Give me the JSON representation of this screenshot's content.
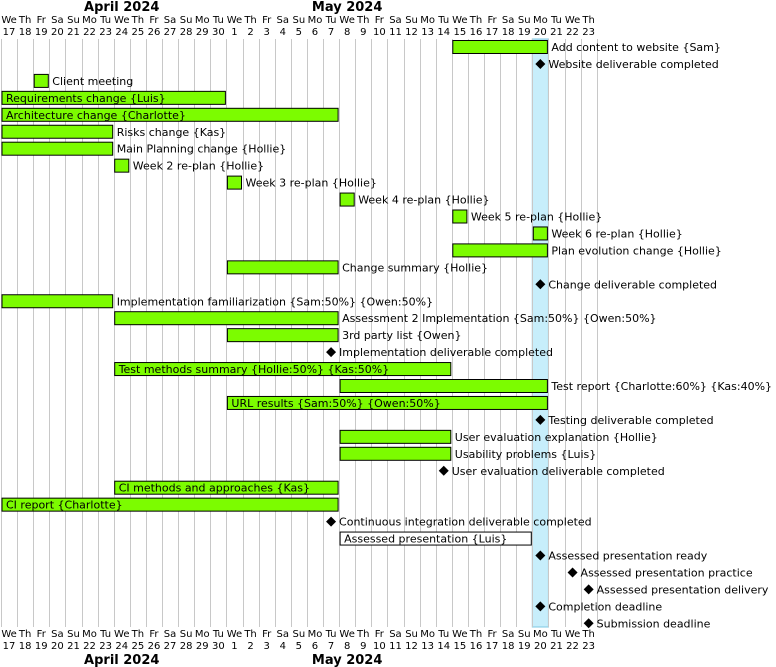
{
  "calendar": {
    "start_date": "2024-04-17",
    "end_date": "2024-05-23",
    "months": [
      {
        "label": "April 2024",
        "center_date": "2024-04-24"
      },
      {
        "label": "May 2024",
        "center_date": "2024-05-08"
      }
    ],
    "weekday_labels": [
      "We",
      "Th",
      "Fr",
      "Sa",
      "Su",
      "Mo",
      "Tu",
      "We",
      "Th",
      "Fr",
      "Sa",
      "Su",
      "Mo",
      "Tu",
      "We",
      "Th",
      "Fr",
      "Sa",
      "Su",
      "Mo",
      "Tu",
      "We",
      "Th",
      "Fr",
      "Sa",
      "Su",
      "Mo",
      "Tu",
      "We",
      "Th",
      "Fr",
      "Sa",
      "Su",
      "Mo",
      "Tu",
      "We",
      "Th"
    ],
    "day_labels": [
      "17",
      "18",
      "19",
      "20",
      "21",
      "22",
      "23",
      "24",
      "25",
      "26",
      "27",
      "28",
      "29",
      "30",
      "1",
      "2",
      "3",
      "4",
      "5",
      "6",
      "7",
      "8",
      "9",
      "10",
      "11",
      "12",
      "13",
      "14",
      "15",
      "16",
      "17",
      "18",
      "19",
      "20",
      "21",
      "22",
      "23"
    ],
    "highlight_date": "2024-05-20",
    "highlight_color": "#c7eefb"
  },
  "colors": {
    "bar_fill": "#7cfc00",
    "bar_fill_plain": "#ffffff",
    "highlight_border": "#7ec8e3"
  },
  "tasks": [
    {
      "type": "bar",
      "start": "2024-05-15",
      "end": "2024-05-20",
      "label": "Add content to website {Sam}",
      "label_position": "outside"
    },
    {
      "type": "milestone",
      "date": "2024-05-20",
      "label": "Website deliverable completed"
    },
    {
      "type": "bar",
      "start": "2024-04-19",
      "end": "2024-04-19",
      "label": "Client meeting",
      "label_position": "outside"
    },
    {
      "type": "bar",
      "start": "2024-04-17",
      "end": "2024-04-30",
      "label": "Requirements change {Luis}",
      "label_position": "inside"
    },
    {
      "type": "bar",
      "start": "2024-04-17",
      "end": "2024-05-07",
      "label": "Architecture change {Charlotte}",
      "label_position": "inside"
    },
    {
      "type": "bar",
      "start": "2024-04-17",
      "end": "2024-04-23",
      "label": "Risks change {Kas}",
      "label_position": "outside"
    },
    {
      "type": "bar",
      "start": "2024-04-17",
      "end": "2024-04-23",
      "label": "Main Planning change {Hollie}",
      "label_position": "outside"
    },
    {
      "type": "bar",
      "start": "2024-04-24",
      "end": "2024-04-24",
      "label": "Week 2 re-plan {Hollie}",
      "label_position": "outside"
    },
    {
      "type": "bar",
      "start": "2024-05-01",
      "end": "2024-05-01",
      "label": "Week 3 re-plan {Hollie}",
      "label_position": "outside"
    },
    {
      "type": "bar",
      "start": "2024-05-08",
      "end": "2024-05-08",
      "label": "Week 4 re-plan {Hollie}",
      "label_position": "outside"
    },
    {
      "type": "bar",
      "start": "2024-05-15",
      "end": "2024-05-15",
      "label": "Week 5 re-plan {Hollie}",
      "label_position": "outside"
    },
    {
      "type": "bar",
      "start": "2024-05-20",
      "end": "2024-05-20",
      "label": "Week 6 re-plan {Hollie}",
      "label_position": "outside"
    },
    {
      "type": "bar",
      "start": "2024-05-15",
      "end": "2024-05-20",
      "label": "Plan evolution change {Hollie}",
      "label_position": "outside"
    },
    {
      "type": "bar",
      "start": "2024-05-01",
      "end": "2024-05-07",
      "label": "Change summary {Hollie}",
      "label_position": "outside"
    },
    {
      "type": "milestone",
      "date": "2024-05-20",
      "label": "Change deliverable completed"
    },
    {
      "type": "bar",
      "start": "2024-04-17",
      "end": "2024-04-23",
      "label": "Implementation familiarization {Sam:50%} {Owen:50%}",
      "label_position": "outside"
    },
    {
      "type": "bar",
      "start": "2024-04-24",
      "end": "2024-05-07",
      "label": "Assessment 2 Implementation {Sam:50%} {Owen:50%}",
      "label_position": "outside"
    },
    {
      "type": "bar",
      "start": "2024-05-01",
      "end": "2024-05-07",
      "label": "3rd party list {Owen}",
      "label_position": "outside"
    },
    {
      "type": "milestone",
      "date": "2024-05-07",
      "label": "Implementation deliverable completed"
    },
    {
      "type": "bar",
      "start": "2024-04-24",
      "end": "2024-05-14",
      "label": "Test methods summary {Hollie:50%} {Kas:50%}",
      "label_position": "inside"
    },
    {
      "type": "bar",
      "start": "2024-05-08",
      "end": "2024-05-20",
      "label": "Test report {Charlotte:60%} {Kas:40%}",
      "label_position": "outside"
    },
    {
      "type": "bar",
      "start": "2024-05-01",
      "end": "2024-05-20",
      "label": "URL results {Sam:50%} {Owen:50%}",
      "label_position": "inside"
    },
    {
      "type": "milestone",
      "date": "2024-05-20",
      "label": "Testing deliverable completed"
    },
    {
      "type": "bar",
      "start": "2024-05-08",
      "end": "2024-05-14",
      "label": "User evaluation explanation {Hollie}",
      "label_position": "outside"
    },
    {
      "type": "bar",
      "start": "2024-05-08",
      "end": "2024-05-14",
      "label": "Usability problems {Luis}",
      "label_position": "outside"
    },
    {
      "type": "milestone",
      "date": "2024-05-14",
      "label": "User evaluation deliverable completed"
    },
    {
      "type": "bar",
      "start": "2024-04-24",
      "end": "2024-05-07",
      "label": "CI methods and approaches {Kas}",
      "label_position": "inside"
    },
    {
      "type": "bar",
      "start": "2024-04-17",
      "end": "2024-05-07",
      "label": "CI report {Charlotte}",
      "label_position": "inside"
    },
    {
      "type": "milestone",
      "date": "2024-05-07",
      "label": "Continuous integration deliverable completed"
    },
    {
      "type": "bar",
      "start": "2024-05-08",
      "end": "2024-05-19",
      "label": "Assessed presentation {Luis}",
      "label_position": "inside",
      "fill": "plain"
    },
    {
      "type": "milestone",
      "date": "2024-05-20",
      "label": "Assessed presentation ready"
    },
    {
      "type": "milestone",
      "date": "2024-05-22",
      "label": "Assessed presentation practice"
    },
    {
      "type": "milestone",
      "date": "2024-05-23",
      "label": "Assessed presentation delivery"
    },
    {
      "type": "milestone",
      "date": "2024-05-20",
      "label": "Completion deadline"
    },
    {
      "type": "milestone",
      "date": "2024-05-23",
      "label": "Submission deadline"
    }
  ]
}
